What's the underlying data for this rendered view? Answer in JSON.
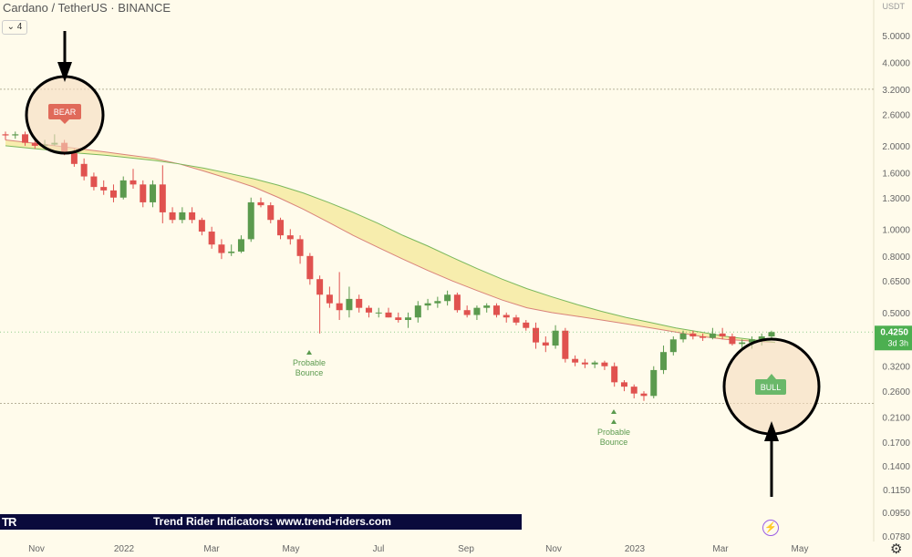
{
  "header": {
    "title": "Cardano / TetherUS · BINANCE",
    "interval_chip": "4"
  },
  "axis": {
    "currency": "USDT",
    "y_ticks": [
      "5.0000",
      "4.0000",
      "3.2000",
      "2.6000",
      "2.0000",
      "1.6000",
      "1.3000",
      "1.0000",
      "0.8000",
      "0.6500",
      "0.5000",
      "0.4000",
      "0.3200",
      "0.2600",
      "0.2100",
      "0.1700",
      "0.1400",
      "0.1150",
      "0.0950",
      "0.0780"
    ],
    "x_ticks": [
      "Nov",
      "2022",
      "Mar",
      "May",
      "Jul",
      "Sep",
      "Nov",
      "2023",
      "Mar",
      "May"
    ]
  },
  "price_tag": {
    "value": "0.4250",
    "countdown": "3d 3h",
    "color": "#4caf50"
  },
  "annotations": {
    "bear": "BEAR",
    "bull": "BULL",
    "bounce1": "Probable Bounce",
    "bounce2": "Probable Bounce"
  },
  "footer": {
    "banner": "Trend Rider Indicators: www.trend-riders.com",
    "logo": "TR"
  },
  "colors": {
    "up": "#5b9a4e",
    "down": "#e0524f",
    "band": "#f6eaa2",
    "ema_red": "#d9827a",
    "ema_green": "#7ab85c"
  },
  "chart_data": {
    "type": "candlestick",
    "symbol": "ADAUSDT",
    "exchange": "BINANCE",
    "interval": "3D",
    "y_scale": "log",
    "candles": [
      {
        "x": "2021-10-20",
        "o": 2.2,
        "h": 2.25,
        "l": 2.1,
        "c": 2.18
      },
      {
        "x": "2021-10-23",
        "o": 2.18,
        "h": 2.25,
        "l": 2.12,
        "c": 2.2
      },
      {
        "x": "2021-10-26",
        "o": 2.2,
        "h": 2.25,
        "l": 2.0,
        "c": 2.05
      },
      {
        "x": "2021-10-29",
        "o": 2.05,
        "h": 2.1,
        "l": 1.95,
        "c": 2.0
      },
      {
        "x": "2021-11-01",
        "o": 2.0,
        "h": 2.1,
        "l": 1.95,
        "c": 2.02
      },
      {
        "x": "2021-11-04",
        "o": 2.02,
        "h": 2.2,
        "l": 2.0,
        "c": 2.05
      },
      {
        "x": "2021-11-07",
        "o": 2.05,
        "h": 2.1,
        "l": 1.85,
        "c": 1.88
      },
      {
        "x": "2021-11-10",
        "o": 1.88,
        "h": 1.95,
        "l": 1.68,
        "c": 1.72
      },
      {
        "x": "2021-11-13",
        "o": 1.72,
        "h": 1.8,
        "l": 1.5,
        "c": 1.55
      },
      {
        "x": "2021-11-16",
        "o": 1.55,
        "h": 1.6,
        "l": 1.38,
        "c": 1.42
      },
      {
        "x": "2021-11-19",
        "o": 1.42,
        "h": 1.5,
        "l": 1.33,
        "c": 1.38
      },
      {
        "x": "2021-11-22",
        "o": 1.38,
        "h": 1.45,
        "l": 1.25,
        "c": 1.3
      },
      {
        "x": "2021-11-25",
        "o": 1.3,
        "h": 1.55,
        "l": 1.28,
        "c": 1.5
      },
      {
        "x": "2021-11-28",
        "o": 1.5,
        "h": 1.65,
        "l": 1.4,
        "c": 1.45
      },
      {
        "x": "2021-12-01",
        "o": 1.45,
        "h": 1.5,
        "l": 1.2,
        "c": 1.25
      },
      {
        "x": "2021-12-04",
        "o": 1.25,
        "h": 1.5,
        "l": 1.2,
        "c": 1.45
      },
      {
        "x": "2021-12-07",
        "o": 1.45,
        "h": 1.7,
        "l": 1.05,
        "c": 1.15
      },
      {
        "x": "2021-12-10",
        "o": 1.15,
        "h": 1.2,
        "l": 1.05,
        "c": 1.08
      },
      {
        "x": "2021-12-13",
        "o": 1.08,
        "h": 1.2,
        "l": 1.05,
        "c": 1.15
      },
      {
        "x": "2021-12-16",
        "o": 1.15,
        "h": 1.2,
        "l": 1.05,
        "c": 1.08
      },
      {
        "x": "2021-12-19",
        "o": 1.08,
        "h": 1.1,
        "l": 0.95,
        "c": 0.98
      },
      {
        "x": "2021-12-22",
        "o": 0.98,
        "h": 1.02,
        "l": 0.85,
        "c": 0.88
      },
      {
        "x": "2021-12-25",
        "o": 0.88,
        "h": 0.92,
        "l": 0.78,
        "c": 0.82
      },
      {
        "x": "2021-12-28",
        "o": 0.82,
        "h": 0.88,
        "l": 0.8,
        "c": 0.83
      },
      {
        "x": "2021-12-31",
        "o": 0.83,
        "h": 0.95,
        "l": 0.82,
        "c": 0.92
      },
      {
        "x": "2022-01-03",
        "o": 0.92,
        "h": 1.3,
        "l": 0.9,
        "c": 1.25
      },
      {
        "x": "2022-01-06",
        "o": 1.25,
        "h": 1.3,
        "l": 1.2,
        "c": 1.22
      },
      {
        "x": "2022-01-09",
        "o": 1.22,
        "h": 1.25,
        "l": 1.05,
        "c": 1.08
      },
      {
        "x": "2022-01-12",
        "o": 1.08,
        "h": 1.1,
        "l": 0.92,
        "c": 0.95
      },
      {
        "x": "2022-01-15",
        "o": 0.95,
        "h": 1.0,
        "l": 0.88,
        "c": 0.92
      },
      {
        "x": "2022-01-18",
        "o": 0.92,
        "h": 0.95,
        "l": 0.75,
        "c": 0.8
      },
      {
        "x": "2022-01-21",
        "o": 0.8,
        "h": 0.82,
        "l": 0.63,
        "c": 0.66
      },
      {
        "x": "2022-01-24",
        "o": 0.66,
        "h": 0.68,
        "l": 0.42,
        "c": 0.58
      },
      {
        "x": "2022-01-27",
        "o": 0.58,
        "h": 0.62,
        "l": 0.52,
        "c": 0.54
      },
      {
        "x": "2022-01-30",
        "o": 0.54,
        "h": 0.7,
        "l": 0.47,
        "c": 0.51
      },
      {
        "x": "2022-02-02",
        "o": 0.51,
        "h": 0.62,
        "l": 0.48,
        "c": 0.56
      },
      {
        "x": "2022-02-05",
        "o": 0.56,
        "h": 0.58,
        "l": 0.5,
        "c": 0.52
      },
      {
        "x": "2022-02-08",
        "o": 0.52,
        "h": 0.53,
        "l": 0.48,
        "c": 0.5
      },
      {
        "x": "2022-02-11",
        "o": 0.5,
        "h": 0.52,
        "l": 0.48,
        "c": 0.5
      },
      {
        "x": "2022-02-14",
        "o": 0.5,
        "h": 0.52,
        "l": 0.48,
        "c": 0.48
      },
      {
        "x": "2022-02-17",
        "o": 0.48,
        "h": 0.5,
        "l": 0.46,
        "c": 0.47
      },
      {
        "x": "2022-02-20",
        "o": 0.47,
        "h": 0.5,
        "l": 0.44,
        "c": 0.48
      },
      {
        "x": "2022-02-23",
        "o": 0.48,
        "h": 0.55,
        "l": 0.46,
        "c": 0.53
      },
      {
        "x": "2022-02-26",
        "o": 0.53,
        "h": 0.56,
        "l": 0.51,
        "c": 0.54
      },
      {
        "x": "2022-03-01",
        "o": 0.54,
        "h": 0.57,
        "l": 0.52,
        "c": 0.55
      },
      {
        "x": "2022-03-04",
        "o": 0.55,
        "h": 0.6,
        "l": 0.53,
        "c": 0.58
      },
      {
        "x": "2022-03-07",
        "o": 0.58,
        "h": 0.59,
        "l": 0.5,
        "c": 0.51
      },
      {
        "x": "2022-03-10",
        "o": 0.51,
        "h": 0.53,
        "l": 0.48,
        "c": 0.49
      },
      {
        "x": "2022-03-13",
        "o": 0.49,
        "h": 0.53,
        "l": 0.47,
        "c": 0.52
      },
      {
        "x": "2022-03-16",
        "o": 0.52,
        "h": 0.54,
        "l": 0.5,
        "c": 0.53
      },
      {
        "x": "2022-03-19",
        "o": 0.53,
        "h": 0.54,
        "l": 0.48,
        "c": 0.49
      },
      {
        "x": "2022-03-22",
        "o": 0.49,
        "h": 0.5,
        "l": 0.46,
        "c": 0.48
      },
      {
        "x": "2022-03-25",
        "o": 0.48,
        "h": 0.49,
        "l": 0.45,
        "c": 0.46
      },
      {
        "x": "2022-03-28",
        "o": 0.46,
        "h": 0.47,
        "l": 0.43,
        "c": 0.44
      },
      {
        "x": "2022-03-31",
        "o": 0.44,
        "h": 0.46,
        "l": 0.37,
        "c": 0.39
      },
      {
        "x": "2022-04-03",
        "o": 0.39,
        "h": 0.41,
        "l": 0.36,
        "c": 0.38
      },
      {
        "x": "2022-04-06",
        "o": 0.38,
        "h": 0.45,
        "l": 0.37,
        "c": 0.43
      },
      {
        "x": "2022-04-09",
        "o": 0.43,
        "h": 0.44,
        "l": 0.33,
        "c": 0.34
      },
      {
        "x": "2022-04-12",
        "o": 0.34,
        "h": 0.35,
        "l": 0.32,
        "c": 0.33
      },
      {
        "x": "2022-04-15",
        "o": 0.33,
        "h": 0.34,
        "l": 0.315,
        "c": 0.325
      },
      {
        "x": "2022-04-18",
        "o": 0.325,
        "h": 0.335,
        "l": 0.315,
        "c": 0.33
      },
      {
        "x": "2022-04-21",
        "o": 0.33,
        "h": 0.335,
        "l": 0.31,
        "c": 0.32
      },
      {
        "x": "2022-04-24",
        "o": 0.32,
        "h": 0.33,
        "l": 0.27,
        "c": 0.28
      },
      {
        "x": "2022-04-27",
        "o": 0.28,
        "h": 0.285,
        "l": 0.26,
        "c": 0.27
      },
      {
        "x": "2022-04-30",
        "o": 0.27,
        "h": 0.275,
        "l": 0.245,
        "c": 0.255
      },
      {
        "x": "2022-05-03",
        "o": 0.255,
        "h": 0.26,
        "l": 0.24,
        "c": 0.25
      },
      {
        "x": "2022-05-06",
        "o": 0.25,
        "h": 0.32,
        "l": 0.245,
        "c": 0.31
      },
      {
        "x": "2022-05-09",
        "o": 0.31,
        "h": 0.38,
        "l": 0.3,
        "c": 0.36
      },
      {
        "x": "2022-05-12",
        "o": 0.36,
        "h": 0.41,
        "l": 0.35,
        "c": 0.4
      },
      {
        "x": "2022-05-15",
        "o": 0.4,
        "h": 0.43,
        "l": 0.39,
        "c": 0.42
      },
      {
        "x": "2022-05-18",
        "o": 0.42,
        "h": 0.43,
        "l": 0.4,
        "c": 0.41
      },
      {
        "x": "2022-05-21",
        "o": 0.41,
        "h": 0.42,
        "l": 0.395,
        "c": 0.405
      },
      {
        "x": "2022-05-24",
        "o": 0.405,
        "h": 0.44,
        "l": 0.4,
        "c": 0.42
      },
      {
        "x": "2022-05-27",
        "o": 0.42,
        "h": 0.44,
        "l": 0.4,
        "c": 0.41
      },
      {
        "x": "2022-05-30",
        "o": 0.41,
        "h": 0.42,
        "l": 0.38,
        "c": 0.385
      },
      {
        "x": "2022-06-02",
        "o": 0.385,
        "h": 0.4,
        "l": 0.37,
        "c": 0.39
      },
      {
        "x": "2022-06-05",
        "o": 0.39,
        "h": 0.41,
        "l": 0.37,
        "c": 0.4
      },
      {
        "x": "2022-06-08",
        "o": 0.4,
        "h": 0.42,
        "l": 0.38,
        "c": 0.41
      },
      {
        "x": "2022-06-11",
        "o": 0.41,
        "h": 0.43,
        "l": 0.4,
        "c": 0.425
      }
    ],
    "ema_band": {
      "fast": [
        2.1,
        2.05,
        2.0,
        1.95,
        1.9,
        1.85,
        1.8,
        1.72,
        1.62,
        1.52,
        1.42,
        1.3,
        1.18,
        1.06,
        0.95,
        0.86,
        0.78,
        0.71,
        0.65,
        0.6,
        0.555,
        0.52,
        0.5,
        0.485,
        0.47,
        0.455,
        0.44,
        0.425,
        0.41,
        0.4,
        0.395,
        0.39
      ],
      "slow": [
        2.0,
        1.96,
        1.92,
        1.88,
        1.85,
        1.81,
        1.77,
        1.72,
        1.66,
        1.59,
        1.52,
        1.44,
        1.35,
        1.25,
        1.15,
        1.05,
        0.95,
        0.87,
        0.79,
        0.72,
        0.66,
        0.61,
        0.57,
        0.535,
        0.505,
        0.48,
        0.46,
        0.44,
        0.425,
        0.41,
        0.4,
        0.39
      ]
    },
    "markers": [
      {
        "label": "BEAR",
        "x": "2021-11-04"
      },
      {
        "label": "Probable Bounce",
        "x": "2022-01-24"
      },
      {
        "label": "Probable Bounce",
        "x": "2022-05-03"
      },
      {
        "label": "BULL",
        "x": "2022-06-08"
      }
    ],
    "horizontal_lines": [
      3.2,
      0.235
    ],
    "last_price": 0.425
  }
}
